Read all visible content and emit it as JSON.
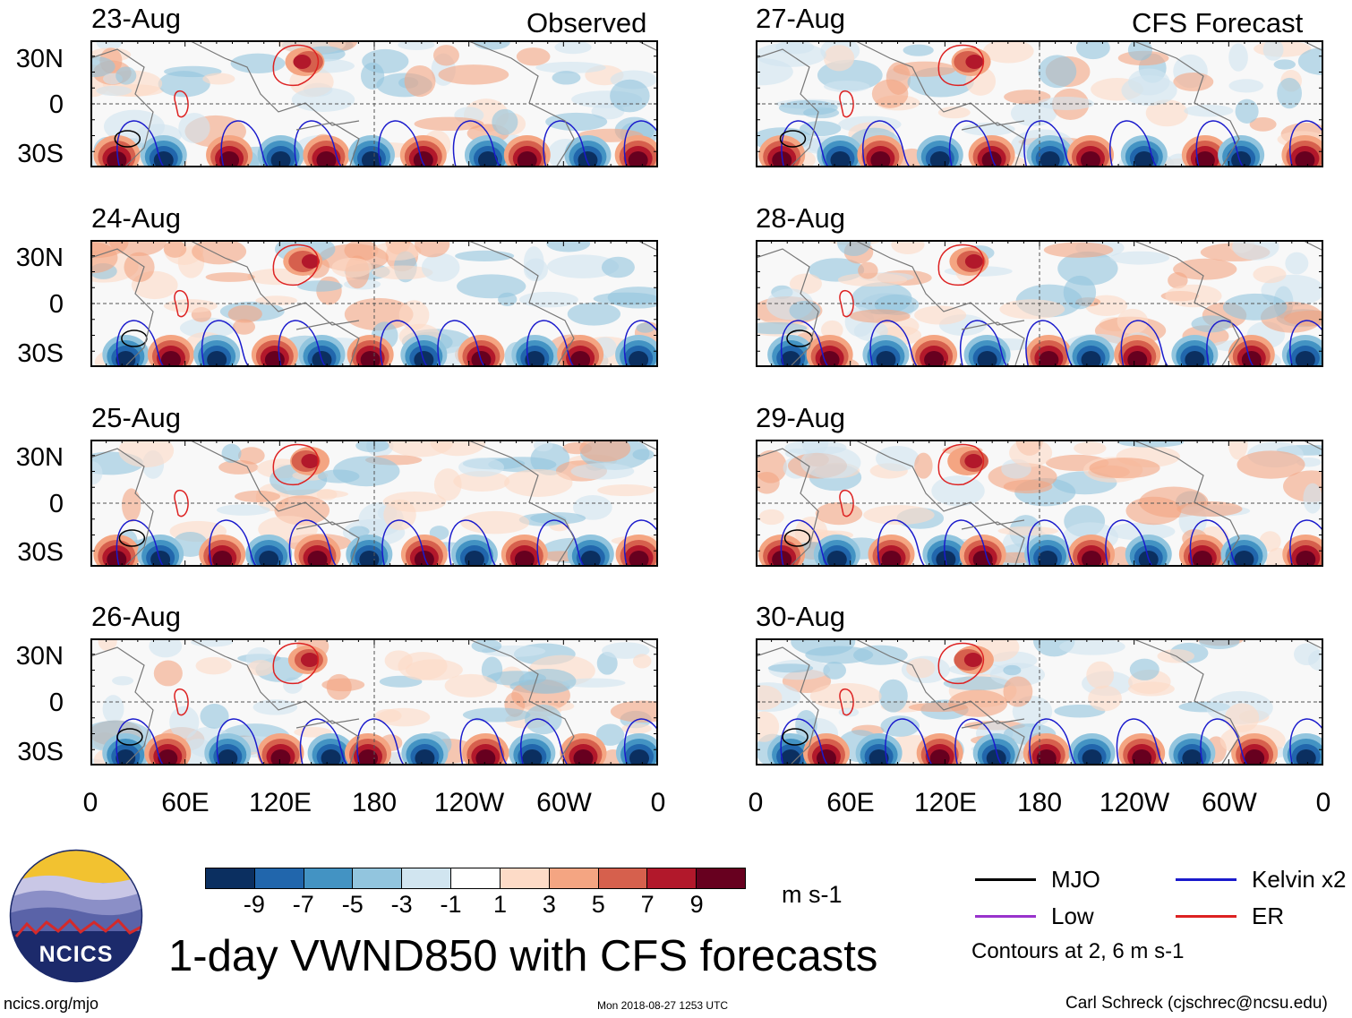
{
  "headers": {
    "left": "Observed",
    "right": "CFS Forecast"
  },
  "left_column": {
    "dates": [
      "23-Aug",
      "24-Aug",
      "25-Aug",
      "26-Aug"
    ],
    "lon_ticks": [
      "0",
      "60E",
      "120E",
      "180",
      "120W",
      "60W",
      "0"
    ]
  },
  "right_column": {
    "dates": [
      "27-Aug",
      "28-Aug",
      "29-Aug",
      "30-Aug"
    ],
    "lon_ticks": [
      "0",
      "60E",
      "120E",
      "180",
      "120W",
      "60W",
      "0"
    ]
  },
  "lat_ticks": [
    "30N",
    "0",
    "30S"
  ],
  "colorbar": {
    "colors": [
      "#0b2f60",
      "#2166ac",
      "#4393c3",
      "#92c5de",
      "#d1e5f0",
      "#ffffff",
      "#fddbc7",
      "#f4a582",
      "#d6604d",
      "#b2182b",
      "#67001f"
    ],
    "ticks": [
      "-9",
      "-7",
      "-5",
      "-3",
      "-1",
      "1",
      "3",
      "5",
      "7",
      "9"
    ],
    "units": "m s-1"
  },
  "legend": {
    "items": [
      {
        "label": "MJO",
        "color": "#000000"
      },
      {
        "label": "Kelvin x2",
        "color": "#1a1acc"
      },
      {
        "label": "Low",
        "color": "#9933cc"
      },
      {
        "label": "ER",
        "color": "#dd2222"
      }
    ],
    "contours_note": "Contours at 2, 6 m s-1"
  },
  "logo": {
    "text": "NCICS"
  },
  "title": "1-day VWND850 with CFS forecasts",
  "footer": {
    "url": "ncics.org/mjo",
    "timestamp": "Mon 2018-08-27 1253 UTC",
    "credit": "Carl Schreck (cjschrec@ncsu.edu)"
  }
}
